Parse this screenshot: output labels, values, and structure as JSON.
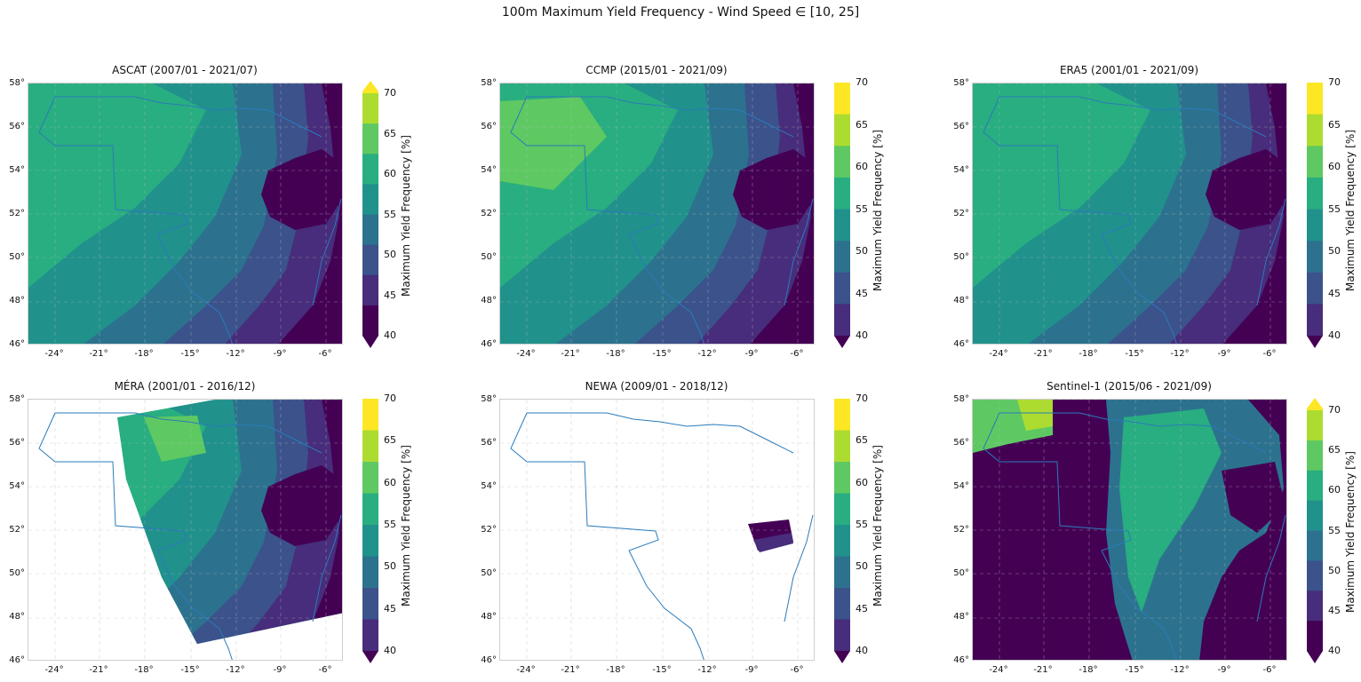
{
  "suptitle": "100m Maximum Yield Frequency - Wind Speed ∈ [10, 25]",
  "colors": {
    "c40": "#440154",
    "c45": "#472d7b",
    "c50": "#3b528b",
    "c55": "#2c728e",
    "c60": "#21918c",
    "c62": "#28ae80",
    "c65": "#5ec962",
    "c68": "#addc30",
    "c70": "#fde725",
    "boundary": "#2b7bba"
  },
  "x_tick_labels": [
    "-24°",
    "-21°",
    "-18°",
    "-15°",
    "-12°",
    "-9°",
    "-6°"
  ],
  "y_tick_labels": [
    "46°",
    "48°",
    "50°",
    "52°",
    "54°",
    "56°",
    "58°"
  ],
  "colorbar": {
    "label": "Maximum Yield Frequency [%]",
    "ticks": [
      "40",
      "45",
      "50",
      "55",
      "60",
      "65",
      "70"
    ]
  },
  "panels": [
    {
      "title": "ASCAT (2007/01 - 2021/07)"
    },
    {
      "title": "CCMP (2015/01 - 2021/09)"
    },
    {
      "title": "ERA5 (2001/01 - 2021/09)"
    },
    {
      "title": "MÉRA (2001/01 - 2016/12)"
    },
    {
      "title": "NEWA (2009/01 - 2018/12)"
    },
    {
      "title": "Sentinel-1 (2015/06 - 2021/09)"
    }
  ]
}
